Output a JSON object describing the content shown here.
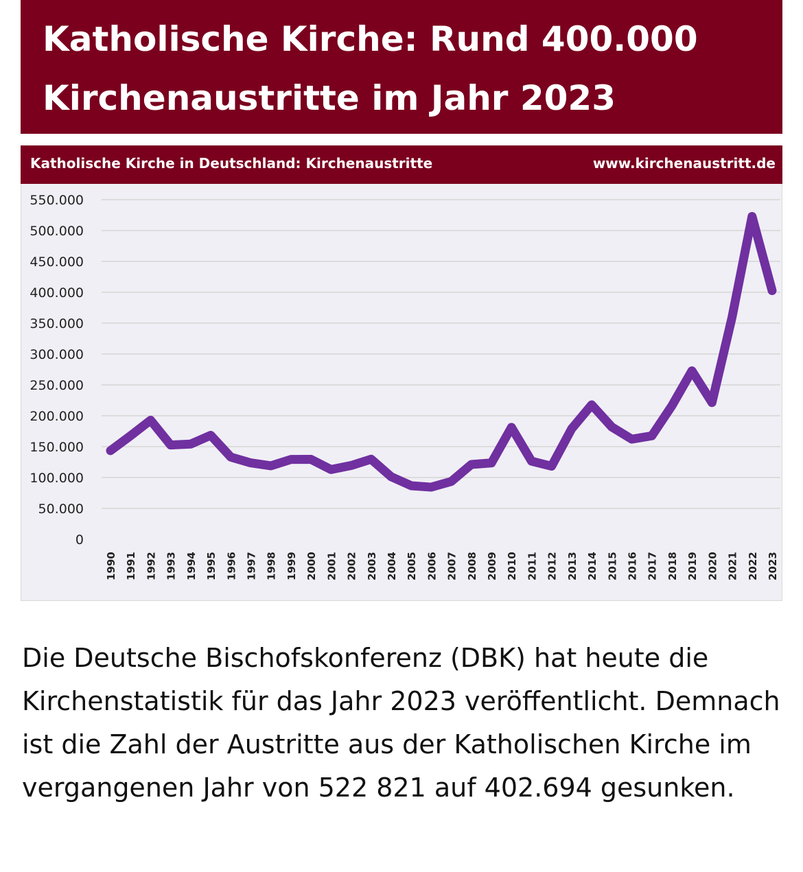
{
  "headline": "Katholische Kirche: Rund 400.000 Kirchenaustritte im Jahr 2023",
  "article_text": "Die Deutsche Bischofskonferenz (DBK) hat heute die Kirchenstatistik für das Jahr 2023 veröffentlicht. Demnach ist die Zahl der Austritte aus der Katholischen Kirche im vergangenen Jahr von 522 821 auf 402.694 gesunken.",
  "colors": {
    "brand": "#7a001e",
    "line": "#7030a0",
    "plot_bg": "#f0eff5"
  },
  "chart_data": {
    "type": "line",
    "title": "Katholische Kirche in Deutschland: Kirchenaustritte",
    "source": "www.kirchenaustritt.de",
    "xlabel": "",
    "ylabel": "",
    "ylim": [
      0,
      550000
    ],
    "grid": true,
    "y_ticks": [
      0,
      50000,
      100000,
      150000,
      200000,
      250000,
      300000,
      350000,
      400000,
      450000,
      500000,
      550000
    ],
    "y_tick_labels": [
      "0",
      "50.000",
      "100.000",
      "150.000",
      "200.000",
      "250.000",
      "300.000",
      "350.000",
      "400.000",
      "450.000",
      "500.000",
      "550.000"
    ],
    "x": [
      "1990",
      "1991",
      "1992",
      "1993",
      "1994",
      "1995",
      "1996",
      "1997",
      "1998",
      "1999",
      "2000",
      "2001",
      "2002",
      "2003",
      "2004",
      "2005",
      "2006",
      "2007",
      "2008",
      "2009",
      "2010",
      "2011",
      "2012",
      "2013",
      "2014",
      "2015",
      "2016",
      "2017",
      "2018",
      "2019",
      "2020",
      "2021",
      "2022",
      "2023"
    ],
    "series": [
      {
        "name": "Kirchenaustritte",
        "values": [
          143530,
          167657,
          192766,
          152631,
          154180,
          168361,
          133105,
          123631,
          118980,
          129253,
          129414,
          112885,
          119403,
          129645,
          101252,
          86688,
          84389,
          93667,
          121155,
          123585,
          181193,
          126488,
          118335,
          178805,
          217716,
          181925,
          162093,
          167504,
          216078,
          272771,
          221390,
          359338,
          522821,
          402694
        ]
      }
    ]
  }
}
